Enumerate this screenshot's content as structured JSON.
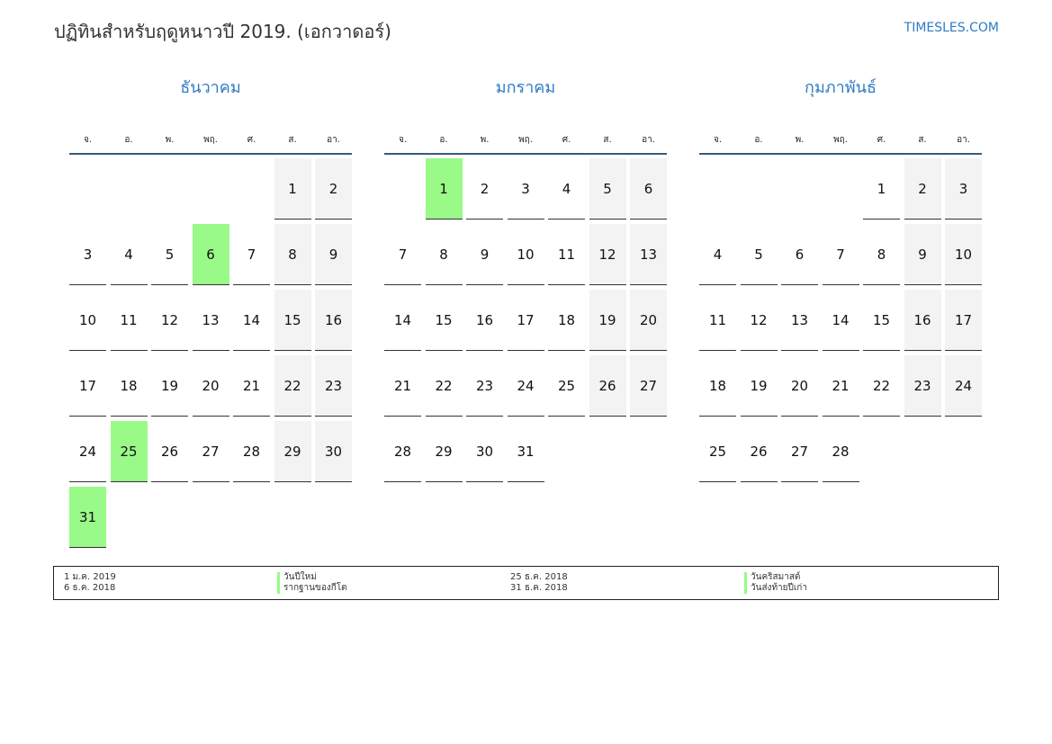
{
  "header": {
    "title": "ปฏิทินสำหรับฤดูหนาวปี 2019. (เอกวาดอร์)",
    "site": "TIMESLES.COM"
  },
  "weekdays": [
    "จ.",
    "อ.",
    "พ.",
    "พฤ.",
    "ศ.",
    "ส.",
    "อา."
  ],
  "months": [
    {
      "name": "ธันวาคม",
      "start_weekday": 5,
      "days": 31,
      "holidays": [
        6,
        25,
        31
      ]
    },
    {
      "name": "มกราคม",
      "start_weekday": 1,
      "days": 31,
      "holidays": [
        1
      ]
    },
    {
      "name": "กุมภาพันธ์",
      "start_weekday": 4,
      "days": 28,
      "holidays": []
    }
  ],
  "colors": {
    "holiday": "#99fa88",
    "weekend": "#f3f3f3",
    "accent": "#2f7bc4"
  },
  "legend": [
    {
      "date": "1 ม.ค. 2019",
      "name": "วันปีใหม่"
    },
    {
      "date": "6 ธ.ค. 2018",
      "name": "รากฐานของกีโต"
    },
    {
      "date": "25 ธ.ค. 2018",
      "name": "วันคริสมาสต์"
    },
    {
      "date": "31 ธ.ค. 2018",
      "name": "วันส่งท้ายปีเก่า"
    }
  ]
}
